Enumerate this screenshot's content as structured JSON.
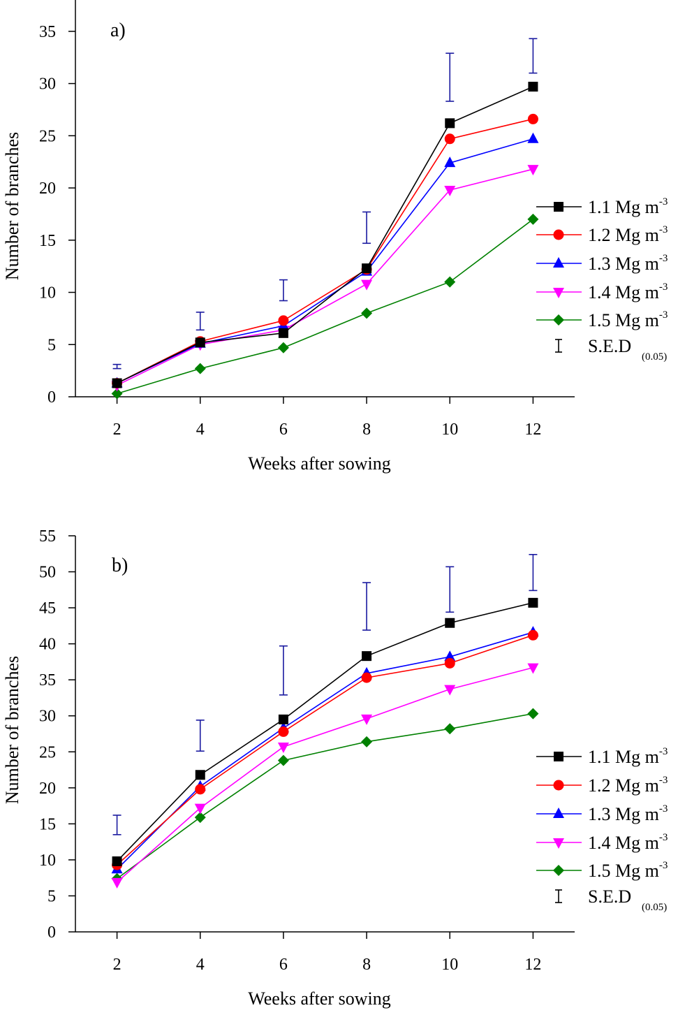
{
  "chart_data": [
    {
      "type": "line",
      "panel_label": "a)",
      "xlabel": "Weeks after sowing",
      "ylabel": "Number of branches",
      "x": [
        2,
        4,
        6,
        8,
        10,
        12
      ],
      "xlim": [
        1,
        13
      ],
      "ylim": [
        0,
        38
      ],
      "xticks": [
        2,
        4,
        6,
        8,
        10,
        12
      ],
      "yticks": [
        0,
        5,
        10,
        15,
        20,
        25,
        30,
        35
      ],
      "grid": false,
      "legend_position": "right",
      "series": [
        {
          "name": "1.1 Mg m",
          "sup": "-3",
          "color": "#000000",
          "marker": "square",
          "values": [
            1.3,
            5.2,
            6.1,
            12.3,
            26.2,
            29.7
          ]
        },
        {
          "name": "1.2 Mg m",
          "sup": "-3",
          "color": "#ff0000",
          "marker": "circle",
          "values": [
            1.3,
            5.3,
            7.3,
            12.2,
            24.7,
            26.6
          ]
        },
        {
          "name": "1.3 Mg m",
          "sup": "-3",
          "color": "#0000ff",
          "marker": "triangle-up",
          "values": [
            1.3,
            5.1,
            6.8,
            12.0,
            22.4,
            24.7
          ]
        },
        {
          "name": "1.4 Mg m",
          "sup": "-3",
          "color": "#ff00ff",
          "marker": "triangle-down",
          "values": [
            1.1,
            5.0,
            6.4,
            10.8,
            19.8,
            21.8
          ]
        },
        {
          "name": "1.5 Mg m",
          "sup": "-3",
          "color": "#008000",
          "marker": "diamond",
          "values": [
            0.3,
            2.7,
            4.7,
            8.0,
            11.0,
            17.0
          ]
        }
      ],
      "sed": {
        "name": "S.E.D",
        "sub": "(0.05)",
        "color": "#1a1aa0",
        "ranges": [
          [
            2.7,
            3.1
          ],
          [
            6.4,
            8.1
          ],
          [
            9.2,
            11.2
          ],
          [
            14.7,
            17.7
          ],
          [
            28.3,
            32.9
          ],
          [
            31.0,
            34.3
          ]
        ]
      }
    },
    {
      "type": "line",
      "panel_label": "b)",
      "xlabel": "Weeks after sowing",
      "ylabel": "Number of branches",
      "x": [
        2,
        4,
        6,
        8,
        10,
        12
      ],
      "xlim": [
        1,
        13
      ],
      "ylim": [
        0,
        55
      ],
      "xticks": [
        2,
        4,
        6,
        8,
        10,
        12
      ],
      "yticks": [
        0,
        5,
        10,
        15,
        20,
        25,
        30,
        35,
        40,
        45,
        50,
        55
      ],
      "grid": false,
      "legend_position": "right",
      "series": [
        {
          "name": "1.1 Mg m",
          "sup": "-3",
          "color": "#000000",
          "marker": "square",
          "values": [
            9.8,
            21.8,
            29.5,
            38.3,
            42.9,
            45.7
          ]
        },
        {
          "name": "1.2 Mg m",
          "sup": "-3",
          "color": "#ff0000",
          "marker": "circle",
          "values": [
            9.3,
            19.8,
            27.8,
            35.3,
            37.3,
            41.2
          ]
        },
        {
          "name": "1.3 Mg m",
          "sup": "-3",
          "color": "#0000ff",
          "marker": "triangle-up",
          "values": [
            8.7,
            20.2,
            28.3,
            35.9,
            38.2,
            41.6
          ]
        },
        {
          "name": "1.4 Mg m",
          "sup": "-3",
          "color": "#ff00ff",
          "marker": "triangle-down",
          "values": [
            6.9,
            17.2,
            25.7,
            29.6,
            33.7,
            36.7
          ]
        },
        {
          "name": "1.5 Mg m",
          "sup": "-3",
          "color": "#008000",
          "marker": "diamond",
          "values": [
            7.4,
            15.9,
            23.8,
            26.4,
            28.2,
            30.3
          ]
        }
      ],
      "sed": {
        "name": "S.E.D",
        "sub": "(0.05)",
        "color": "#1a1aa0",
        "ranges": [
          [
            13.5,
            16.2
          ],
          [
            25.1,
            29.4
          ],
          [
            32.9,
            39.7
          ],
          [
            41.9,
            48.5
          ],
          [
            44.4,
            50.7
          ],
          [
            47.4,
            52.4
          ]
        ]
      }
    }
  ]
}
